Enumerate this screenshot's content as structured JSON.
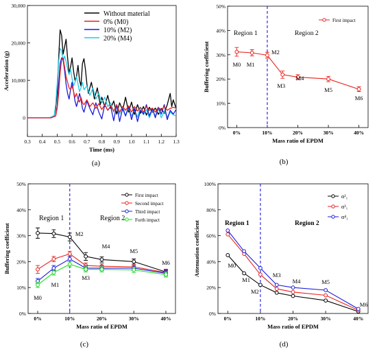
{
  "chart_data": [
    {
      "id": "a",
      "panel_label": "(a)",
      "type": "line",
      "xlabel": "Time (ms)",
      "ylabel": "Acceleration (g)",
      "xlim": [
        0.3,
        1.3
      ],
      "ylim": [
        -5000,
        30000
      ],
      "xticks": [
        0.3,
        0.4,
        0.5,
        0.6,
        0.7,
        0.8,
        0.9,
        1.0,
        1.1,
        1.2,
        1.3
      ],
      "xtick_labels": [
        "0.3",
        "0.4",
        "0.5",
        "0.6",
        "0.7",
        "0.8",
        "0.9",
        "1.0",
        "1.1",
        "1.2",
        "1.3"
      ],
      "yticks": [
        0,
        10000,
        20000,
        30000
      ],
      "ytick_labels": [
        "0",
        "10,000",
        "20,000",
        "30,000"
      ],
      "legend_position": "top-right",
      "series": [
        {
          "name": "Without material",
          "color": "#000000",
          "x": [
            0.3,
            0.45,
            0.48,
            0.49,
            0.5,
            0.51,
            0.52,
            0.53,
            0.54,
            0.55,
            0.56,
            0.57,
            0.58,
            0.59,
            0.6,
            0.61,
            0.62,
            0.63,
            0.64,
            0.65,
            0.66,
            0.67,
            0.68,
            0.69,
            0.7,
            0.71,
            0.72,
            0.73,
            0.74,
            0.75,
            0.76,
            0.77,
            0.78,
            0.79,
            0.8,
            0.82,
            0.84,
            0.86,
            0.88,
            0.9,
            0.92,
            0.94,
            0.96,
            0.98,
            1.0,
            1.02,
            1.04,
            1.06,
            1.08,
            1.1,
            1.12,
            1.14,
            1.16,
            1.18,
            1.2,
            1.22,
            1.24,
            1.26,
            1.27,
            1.28,
            1.3
          ],
          "y": [
            0,
            0,
            500,
            2500,
            7000,
            16000,
            23500,
            22000,
            17000,
            19000,
            21000,
            16000,
            12000,
            13500,
            16000,
            12500,
            10000,
            11000,
            14000,
            10000,
            8500,
            14500,
            15800,
            13000,
            9000,
            6500,
            8000,
            9500,
            7500,
            5000,
            6500,
            8000,
            5500,
            3500,
            5500,
            3000,
            6000,
            2500,
            4500,
            1000,
            4000,
            2000,
            5500,
            1500,
            4200,
            900,
            3500,
            1200,
            3000,
            700,
            2800,
            1500,
            2600,
            900,
            2500,
            1200,
            3500,
            6500,
            3000,
            4800,
            2500
          ]
        },
        {
          "name": "0%  (M0)",
          "color": "#e8211c",
          "x": [
            0.3,
            0.46,
            0.49,
            0.5,
            0.51,
            0.52,
            0.53,
            0.54,
            0.55,
            0.56,
            0.57,
            0.58,
            0.59,
            0.6,
            0.61,
            0.62,
            0.63,
            0.64,
            0.65,
            0.66,
            0.67,
            0.68,
            0.7,
            0.72,
            0.74,
            0.76,
            0.78,
            0.8,
            0.82,
            0.84,
            0.86,
            0.88,
            0.9,
            0.92,
            0.94,
            0.96,
            0.98,
            1.0,
            1.02,
            1.04,
            1.06,
            1.08,
            1.1,
            1.12,
            1.14,
            1.16,
            1.18,
            1.2,
            1.22,
            1.24,
            1.26,
            1.28,
            1.3
          ],
          "y": [
            0,
            0,
            500,
            2500,
            6500,
            12000,
            15500,
            16000,
            13500,
            11000,
            9500,
            8000,
            7500,
            8500,
            7000,
            5500,
            6500,
            5000,
            4200,
            5500,
            4000,
            3500,
            4800,
            3000,
            4000,
            2500,
            3800,
            2200,
            3500,
            2000,
            3200,
            1800,
            3500,
            1500,
            3000,
            2000,
            3200,
            1500,
            3000,
            1800,
            2800,
            1500,
            3000,
            2000,
            2600,
            1500,
            2800,
            2000,
            3000,
            2000,
            2500,
            2800,
            2600
          ]
        },
        {
          "name": "10% (M2)",
          "color": "#1a1adc",
          "x": [
            0.3,
            0.46,
            0.49,
            0.5,
            0.51,
            0.52,
            0.53,
            0.54,
            0.55,
            0.56,
            0.57,
            0.58,
            0.59,
            0.6,
            0.61,
            0.62,
            0.63,
            0.64,
            0.65,
            0.66,
            0.67,
            0.68,
            0.69,
            0.7,
            0.72,
            0.74,
            0.76,
            0.78,
            0.8,
            0.82,
            0.84,
            0.86,
            0.88,
            0.9,
            0.92,
            0.94,
            0.96,
            0.98,
            1.0,
            1.02,
            1.04,
            1.06,
            1.08,
            1.1,
            1.12,
            1.14,
            1.16,
            1.18,
            1.2,
            1.22,
            1.24,
            1.26,
            1.28,
            1.3
          ],
          "y": [
            0,
            0,
            500,
            3000,
            9000,
            14500,
            16000,
            15500,
            12500,
            9000,
            6500,
            5000,
            7500,
            9500,
            7000,
            4500,
            3000,
            4500,
            6500,
            5000,
            2500,
            1500,
            3000,
            4500,
            2500,
            800,
            4000,
            1500,
            -300,
            3500,
            2000,
            3000,
            -800,
            3500,
            -1000,
            2500,
            500,
            3000,
            -500,
            2500,
            -1000,
            2000,
            1000,
            3500,
            500,
            2500,
            0,
            2800,
            1000,
            3500,
            -500,
            2000,
            1000,
            2200
          ]
        },
        {
          "name": "20% (M4)",
          "color": "#1fc8e8",
          "x": [
            0.3,
            0.45,
            0.48,
            0.49,
            0.5,
            0.51,
            0.52,
            0.53,
            0.54,
            0.55,
            0.56,
            0.57,
            0.58,
            0.59,
            0.6,
            0.61,
            0.62,
            0.63,
            0.64,
            0.65,
            0.66,
            0.67,
            0.68,
            0.7,
            0.72,
            0.74,
            0.76,
            0.78,
            0.8,
            0.82,
            0.84,
            0.86,
            0.88,
            0.9,
            0.92,
            0.94,
            0.96,
            0.98,
            1.0,
            1.02,
            1.04,
            1.06,
            1.08,
            1.1,
            1.12,
            1.14,
            1.16,
            1.18,
            1.2,
            1.22,
            1.24,
            1.26,
            1.28,
            1.3
          ],
          "y": [
            0,
            0,
            600,
            3500,
            9000,
            15000,
            18500,
            18000,
            15000,
            16500,
            15000,
            13000,
            11500,
            13000,
            10500,
            8500,
            9500,
            11000,
            9000,
            7000,
            8000,
            9500,
            7500,
            8500,
            6000,
            8000,
            5000,
            6500,
            4000,
            5500,
            3000,
            4000,
            1500,
            3500,
            1000,
            3000,
            500,
            2500,
            500,
            2000,
            200,
            2800,
            800,
            2200,
            0,
            2000,
            500,
            2500,
            0,
            1800,
            200,
            1500,
            800,
            500
          ]
        }
      ]
    },
    {
      "id": "b",
      "panel_label": "(b)",
      "type": "line",
      "xlabel": "Mass ratio of EPDM",
      "ylabel": "Buffering coefficient",
      "ylim": [
        0,
        50
      ],
      "xtick_labels": [
        "0%",
        "10%",
        "20%",
        "30%",
        "40%"
      ],
      "xtick_values": [
        0,
        10,
        20,
        30,
        40
      ],
      "ytick_labels": [
        "0%",
        "10%",
        "20%",
        "30%",
        "40%",
        "50%"
      ],
      "ytick_values": [
        0,
        10,
        20,
        30,
        40,
        50
      ],
      "divider_x": 10,
      "region_labels": [
        "Region 1",
        "Region 2"
      ],
      "legend_position": "top-right",
      "point_labels": [
        "M0",
        "M1",
        "M2",
        "M3",
        "M4",
        "M5",
        "M6"
      ],
      "x": [
        0,
        5,
        10,
        15,
        20,
        30,
        40
      ],
      "series": [
        {
          "name": "First impact",
          "color": "#e8211c",
          "values": [
            31.2,
            30.8,
            29.8,
            21.8,
            20.8,
            20.0,
            15.8
          ],
          "errors": [
            1.8,
            1.3,
            1.2,
            1.5,
            1.0,
            1.1,
            1.0
          ]
        }
      ]
    },
    {
      "id": "c",
      "panel_label": "(c)",
      "type": "line",
      "xlabel": "Mass ratio of EPDM",
      "ylabel": "Buffering coefficient",
      "ylim": [
        0,
        50
      ],
      "xtick_labels": [
        "0%",
        "10%",
        "20%",
        "30%",
        "40%"
      ],
      "xtick_values": [
        0,
        10,
        20,
        30,
        40
      ],
      "ytick_labels": [
        "0%",
        "10%",
        "20%",
        "30%",
        "40%",
        "50%"
      ],
      "ytick_values": [
        0,
        10,
        20,
        30,
        40,
        50
      ],
      "divider_x": 10,
      "region_labels": [
        "Region 1",
        "Region 2"
      ],
      "legend_position": "top-right",
      "point_labels": [
        "M0",
        "M1",
        "M2",
        "M3",
        "M4",
        "M5",
        "M6"
      ],
      "x": [
        0,
        5,
        10,
        15,
        20,
        30,
        40
      ],
      "series": [
        {
          "name": "First impact",
          "color": "#000000",
          "values": [
            31.0,
            30.8,
            29.5,
            22.0,
            20.8,
            20.0,
            16.0
          ],
          "errors": [
            2.0,
            1.5,
            1.5,
            1.5,
            1.0,
            1.0,
            1.0
          ]
        },
        {
          "name": "Second impact",
          "color": "#e8211c",
          "values": [
            17.0,
            21.0,
            23.0,
            18.5,
            18.2,
            18.0,
            15.8
          ],
          "errors": [
            1.5,
            1.0,
            1.0,
            1.0,
            1.0,
            1.0,
            1.0
          ]
        },
        {
          "name": "Third impact",
          "color": "#1a1adc",
          "values": [
            12.5,
            17.5,
            21.0,
            17.5,
            17.5,
            17.5,
            15.5
          ],
          "errors": [
            1.0,
            1.0,
            1.0,
            1.0,
            1.0,
            1.0,
            1.0
          ]
        },
        {
          "name": "Forth impact",
          "color": "#19e019",
          "values": [
            11.0,
            15.8,
            19.0,
            17.0,
            17.0,
            16.8,
            15.0
          ],
          "errors": [
            1.0,
            1.0,
            1.0,
            1.0,
            1.0,
            1.0,
            1.0
          ]
        }
      ]
    },
    {
      "id": "d",
      "panel_label": "(d)",
      "type": "line",
      "xlabel": "Mass ratio of EPDM",
      "ylabel": "Attenuation coefficient",
      "ylim": [
        0,
        100
      ],
      "xtick_labels": [
        "0%",
        "10%",
        "20%",
        "30%",
        "40%"
      ],
      "xtick_values": [
        0,
        10,
        20,
        30,
        40
      ],
      "ytick_labels": [
        "0%",
        "20%",
        "40%",
        "60%",
        "80%",
        "100%"
      ],
      "ytick_values": [
        0,
        20,
        40,
        60,
        80,
        100
      ],
      "divider_x": 10,
      "region_labels": [
        "Region 1",
        "Region 2"
      ],
      "legend_position": "top-right",
      "point_labels": [
        "M0",
        "M1",
        "M2",
        "M3",
        "M4",
        "M5",
        "M6"
      ],
      "x": [
        0,
        5,
        10,
        15,
        20,
        30,
        40
      ],
      "series": [
        {
          "name": "α²₁",
          "color": "#000000",
          "values": [
            45,
            31,
            22,
            16,
            13.5,
            10,
            1.5
          ]
        },
        {
          "name": "α³₁",
          "color": "#e8211c",
          "values": [
            61,
            46,
            30,
            19,
            16.5,
            14,
            2.5
          ]
        },
        {
          "name": "α⁴₁",
          "color": "#1a1adc",
          "values": [
            64,
            48,
            35,
            22,
            20,
            18,
            3.5
          ]
        }
      ]
    }
  ]
}
